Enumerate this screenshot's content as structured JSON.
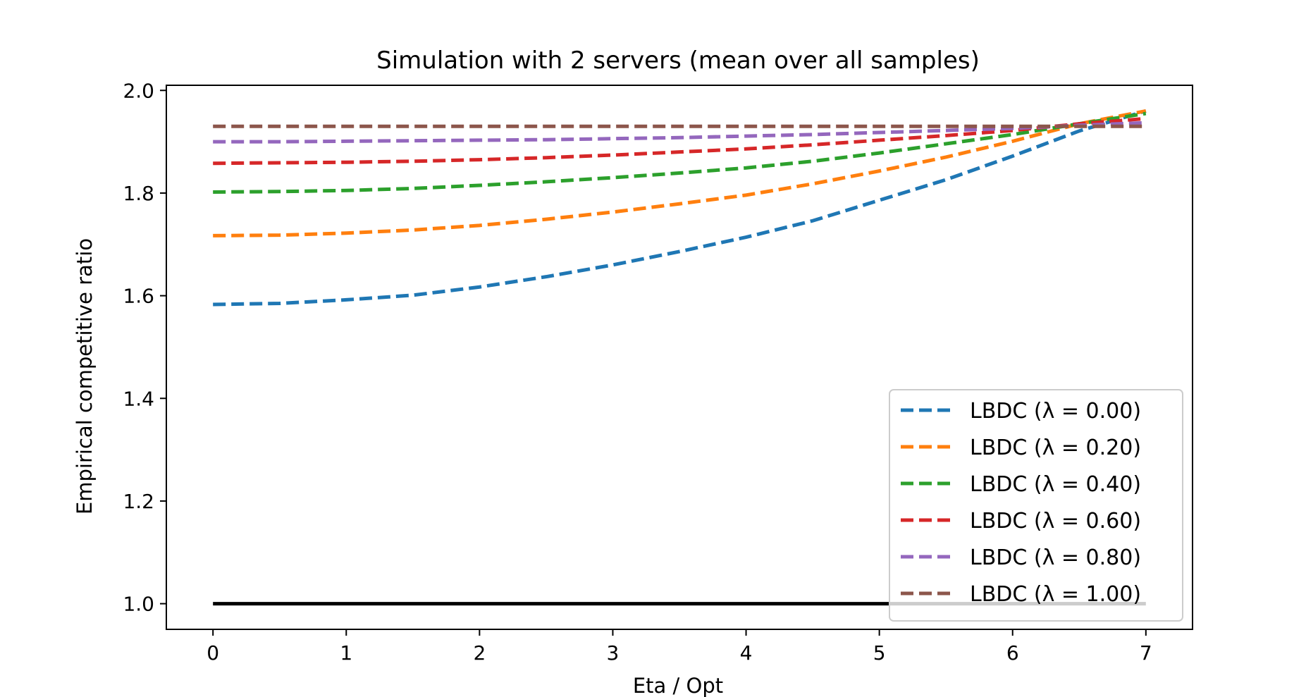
{
  "chart_data": {
    "type": "line",
    "title": "Simulation with 2 servers (mean over all samples)",
    "xlabel": "Eta / Opt",
    "ylabel": "Empirical competitive ratio",
    "xlim": [
      -0.35,
      7.35
    ],
    "ylim": [
      0.95,
      2.01
    ],
    "xticks": [
      0,
      1,
      2,
      3,
      4,
      5,
      6,
      7
    ],
    "xtick_labels": [
      "0",
      "1",
      "2",
      "3",
      "4",
      "5",
      "6",
      "7"
    ],
    "yticks": [
      1.0,
      1.2,
      1.4,
      1.6,
      1.8,
      2.0
    ],
    "ytick_labels": [
      "1.0",
      "1.2",
      "1.4",
      "1.6",
      "1.8",
      "2.0"
    ],
    "grid": false,
    "legend_position": "lower right",
    "x": [
      0,
      0.5,
      1,
      1.5,
      2,
      2.5,
      3,
      3.5,
      4,
      4.5,
      5,
      5.5,
      6,
      6.5,
      7
    ],
    "series": [
      {
        "name": "LBDC (λ = 0.00)",
        "color": "#1f77b4",
        "style": "dashed",
        "values": [
          1.583,
          1.585,
          1.592,
          1.601,
          1.617,
          1.637,
          1.66,
          1.686,
          1.714,
          1.746,
          1.786,
          1.826,
          1.872,
          1.921,
          1.96
        ]
      },
      {
        "name": "LBDC (λ = 0.20)",
        "color": "#ff7f0e",
        "style": "dashed",
        "values": [
          1.717,
          1.718,
          1.722,
          1.728,
          1.737,
          1.749,
          1.763,
          1.779,
          1.796,
          1.818,
          1.843,
          1.87,
          1.901,
          1.935,
          1.96
        ]
      },
      {
        "name": "LBDC (λ = 0.40)",
        "color": "#2ca02c",
        "style": "dashed",
        "values": [
          1.802,
          1.803,
          1.805,
          1.809,
          1.815,
          1.822,
          1.83,
          1.839,
          1.849,
          1.862,
          1.878,
          1.896,
          1.914,
          1.935,
          1.955
        ]
      },
      {
        "name": "LBDC (λ = 0.60)",
        "color": "#d62728",
        "style": "dashed",
        "values": [
          1.858,
          1.859,
          1.86,
          1.862,
          1.865,
          1.869,
          1.874,
          1.88,
          1.886,
          1.894,
          1.903,
          1.912,
          1.922,
          1.935,
          1.945
        ]
      },
      {
        "name": "LBDC (λ = 0.80)",
        "color": "#9467bd",
        "style": "dashed",
        "values": [
          1.9,
          1.9,
          1.901,
          1.902,
          1.903,
          1.904,
          1.906,
          1.908,
          1.911,
          1.914,
          1.918,
          1.922,
          1.926,
          1.932,
          1.937
        ]
      },
      {
        "name": "LBDC (λ = 1.00)",
        "color": "#8c564b",
        "style": "dashed",
        "values": [
          1.93,
          1.93,
          1.93,
          1.93,
          1.93,
          1.93,
          1.93,
          1.93,
          1.93,
          1.93,
          1.93,
          1.93,
          1.93,
          1.93,
          1.93
        ]
      },
      {
        "color": "#000000",
        "style": "solid",
        "values": [
          1.0,
          1.0,
          1.0,
          1.0,
          1.0,
          1.0,
          1.0,
          1.0,
          1.0,
          1.0,
          1.0,
          1.0,
          1.0,
          1.0,
          1.0
        ]
      }
    ]
  }
}
